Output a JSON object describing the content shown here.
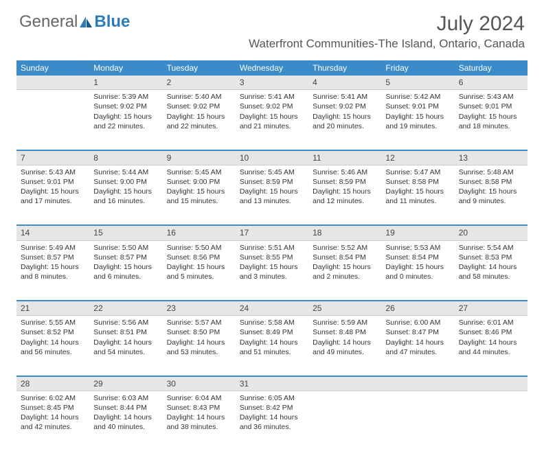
{
  "brand": {
    "part1": "General",
    "part2": "Blue"
  },
  "title": "July 2024",
  "location": "Waterfront Communities-The Island, Ontario, Canada",
  "colors": {
    "header_bg": "#3b8bc9",
    "daynum_bg": "#e6e6e6",
    "text": "#333333"
  },
  "day_headers": [
    "Sunday",
    "Monday",
    "Tuesday",
    "Wednesday",
    "Thursday",
    "Friday",
    "Saturday"
  ],
  "weeks": [
    {
      "nums": [
        "",
        "1",
        "2",
        "3",
        "4",
        "5",
        "6"
      ],
      "cells": [
        null,
        {
          "sr": "Sunrise: 5:39 AM",
          "ss": "Sunset: 9:02 PM",
          "d1": "Daylight: 15 hours",
          "d2": "and 22 minutes."
        },
        {
          "sr": "Sunrise: 5:40 AM",
          "ss": "Sunset: 9:02 PM",
          "d1": "Daylight: 15 hours",
          "d2": "and 22 minutes."
        },
        {
          "sr": "Sunrise: 5:41 AM",
          "ss": "Sunset: 9:02 PM",
          "d1": "Daylight: 15 hours",
          "d2": "and 21 minutes."
        },
        {
          "sr": "Sunrise: 5:41 AM",
          "ss": "Sunset: 9:02 PM",
          "d1": "Daylight: 15 hours",
          "d2": "and 20 minutes."
        },
        {
          "sr": "Sunrise: 5:42 AM",
          "ss": "Sunset: 9:01 PM",
          "d1": "Daylight: 15 hours",
          "d2": "and 19 minutes."
        },
        {
          "sr": "Sunrise: 5:43 AM",
          "ss": "Sunset: 9:01 PM",
          "d1": "Daylight: 15 hours",
          "d2": "and 18 minutes."
        }
      ]
    },
    {
      "nums": [
        "7",
        "8",
        "9",
        "10",
        "11",
        "12",
        "13"
      ],
      "cells": [
        {
          "sr": "Sunrise: 5:43 AM",
          "ss": "Sunset: 9:01 PM",
          "d1": "Daylight: 15 hours",
          "d2": "and 17 minutes."
        },
        {
          "sr": "Sunrise: 5:44 AM",
          "ss": "Sunset: 9:00 PM",
          "d1": "Daylight: 15 hours",
          "d2": "and 16 minutes."
        },
        {
          "sr": "Sunrise: 5:45 AM",
          "ss": "Sunset: 9:00 PM",
          "d1": "Daylight: 15 hours",
          "d2": "and 15 minutes."
        },
        {
          "sr": "Sunrise: 5:45 AM",
          "ss": "Sunset: 8:59 PM",
          "d1": "Daylight: 15 hours",
          "d2": "and 13 minutes."
        },
        {
          "sr": "Sunrise: 5:46 AM",
          "ss": "Sunset: 8:59 PM",
          "d1": "Daylight: 15 hours",
          "d2": "and 12 minutes."
        },
        {
          "sr": "Sunrise: 5:47 AM",
          "ss": "Sunset: 8:58 PM",
          "d1": "Daylight: 15 hours",
          "d2": "and 11 minutes."
        },
        {
          "sr": "Sunrise: 5:48 AM",
          "ss": "Sunset: 8:58 PM",
          "d1": "Daylight: 15 hours",
          "d2": "and 9 minutes."
        }
      ]
    },
    {
      "nums": [
        "14",
        "15",
        "16",
        "17",
        "18",
        "19",
        "20"
      ],
      "cells": [
        {
          "sr": "Sunrise: 5:49 AM",
          "ss": "Sunset: 8:57 PM",
          "d1": "Daylight: 15 hours",
          "d2": "and 8 minutes."
        },
        {
          "sr": "Sunrise: 5:50 AM",
          "ss": "Sunset: 8:57 PM",
          "d1": "Daylight: 15 hours",
          "d2": "and 6 minutes."
        },
        {
          "sr": "Sunrise: 5:50 AM",
          "ss": "Sunset: 8:56 PM",
          "d1": "Daylight: 15 hours",
          "d2": "and 5 minutes."
        },
        {
          "sr": "Sunrise: 5:51 AM",
          "ss": "Sunset: 8:55 PM",
          "d1": "Daylight: 15 hours",
          "d2": "and 3 minutes."
        },
        {
          "sr": "Sunrise: 5:52 AM",
          "ss": "Sunset: 8:54 PM",
          "d1": "Daylight: 15 hours",
          "d2": "and 2 minutes."
        },
        {
          "sr": "Sunrise: 5:53 AM",
          "ss": "Sunset: 8:54 PM",
          "d1": "Daylight: 15 hours",
          "d2": "and 0 minutes."
        },
        {
          "sr": "Sunrise: 5:54 AM",
          "ss": "Sunset: 8:53 PM",
          "d1": "Daylight: 14 hours",
          "d2": "and 58 minutes."
        }
      ]
    },
    {
      "nums": [
        "21",
        "22",
        "23",
        "24",
        "25",
        "26",
        "27"
      ],
      "cells": [
        {
          "sr": "Sunrise: 5:55 AM",
          "ss": "Sunset: 8:52 PM",
          "d1": "Daylight: 14 hours",
          "d2": "and 56 minutes."
        },
        {
          "sr": "Sunrise: 5:56 AM",
          "ss": "Sunset: 8:51 PM",
          "d1": "Daylight: 14 hours",
          "d2": "and 54 minutes."
        },
        {
          "sr": "Sunrise: 5:57 AM",
          "ss": "Sunset: 8:50 PM",
          "d1": "Daylight: 14 hours",
          "d2": "and 53 minutes."
        },
        {
          "sr": "Sunrise: 5:58 AM",
          "ss": "Sunset: 8:49 PM",
          "d1": "Daylight: 14 hours",
          "d2": "and 51 minutes."
        },
        {
          "sr": "Sunrise: 5:59 AM",
          "ss": "Sunset: 8:48 PM",
          "d1": "Daylight: 14 hours",
          "d2": "and 49 minutes."
        },
        {
          "sr": "Sunrise: 6:00 AM",
          "ss": "Sunset: 8:47 PM",
          "d1": "Daylight: 14 hours",
          "d2": "and 47 minutes."
        },
        {
          "sr": "Sunrise: 6:01 AM",
          "ss": "Sunset: 8:46 PM",
          "d1": "Daylight: 14 hours",
          "d2": "and 44 minutes."
        }
      ]
    },
    {
      "nums": [
        "28",
        "29",
        "30",
        "31",
        "",
        "",
        ""
      ],
      "cells": [
        {
          "sr": "Sunrise: 6:02 AM",
          "ss": "Sunset: 8:45 PM",
          "d1": "Daylight: 14 hours",
          "d2": "and 42 minutes."
        },
        {
          "sr": "Sunrise: 6:03 AM",
          "ss": "Sunset: 8:44 PM",
          "d1": "Daylight: 14 hours",
          "d2": "and 40 minutes."
        },
        {
          "sr": "Sunrise: 6:04 AM",
          "ss": "Sunset: 8:43 PM",
          "d1": "Daylight: 14 hours",
          "d2": "and 38 minutes."
        },
        {
          "sr": "Sunrise: 6:05 AM",
          "ss": "Sunset: 8:42 PM",
          "d1": "Daylight: 14 hours",
          "d2": "and 36 minutes."
        },
        null,
        null,
        null
      ]
    }
  ]
}
